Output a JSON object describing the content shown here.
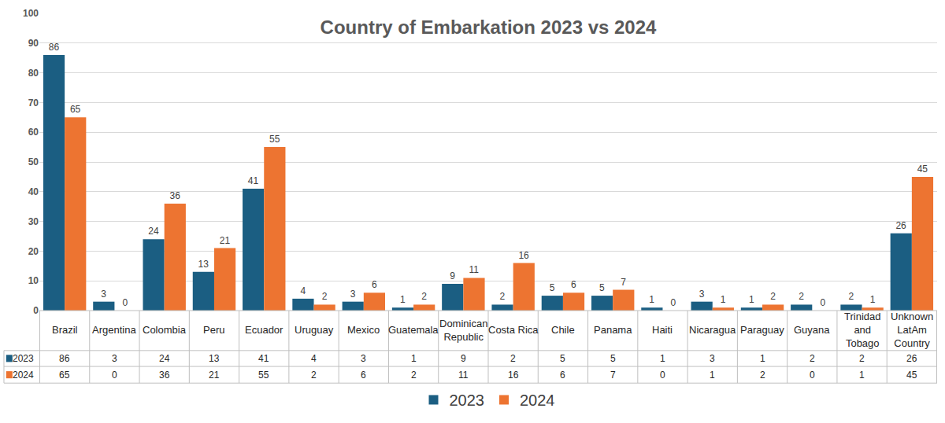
{
  "chart_data": {
    "type": "bar",
    "title": "Country of Embarkation 2023 vs 2024",
    "categories": [
      "Brazil",
      "Argentina",
      "Colombia",
      "Peru",
      "Ecuador",
      "Uruguay",
      "Mexico",
      "Guatemala",
      "Dominican Republic",
      "Costa Rica",
      "Chile",
      "Panama",
      "Haiti",
      "Nicaragua",
      "Paraguay",
      "Guyana",
      "Trinidad and Tobago",
      "Unknown LatAm Country"
    ],
    "series": [
      {
        "name": "2023",
        "color": "#1b5e82",
        "values": [
          86,
          3,
          24,
          13,
          41,
          4,
          3,
          1,
          9,
          2,
          5,
          5,
          1,
          3,
          1,
          2,
          2,
          26
        ]
      },
      {
        "name": "2024",
        "color": "#ed7431",
        "values": [
          65,
          0,
          36,
          21,
          55,
          2,
          6,
          2,
          11,
          16,
          6,
          7,
          0,
          1,
          2,
          0,
          1,
          45
        ]
      }
    ],
    "ylim": [
      0,
      100
    ],
    "yticks": [
      0,
      10,
      20,
      30,
      40,
      50,
      60,
      70,
      80,
      90,
      100
    ],
    "grid": true,
    "data_labels": true,
    "legend": "bottom"
  }
}
